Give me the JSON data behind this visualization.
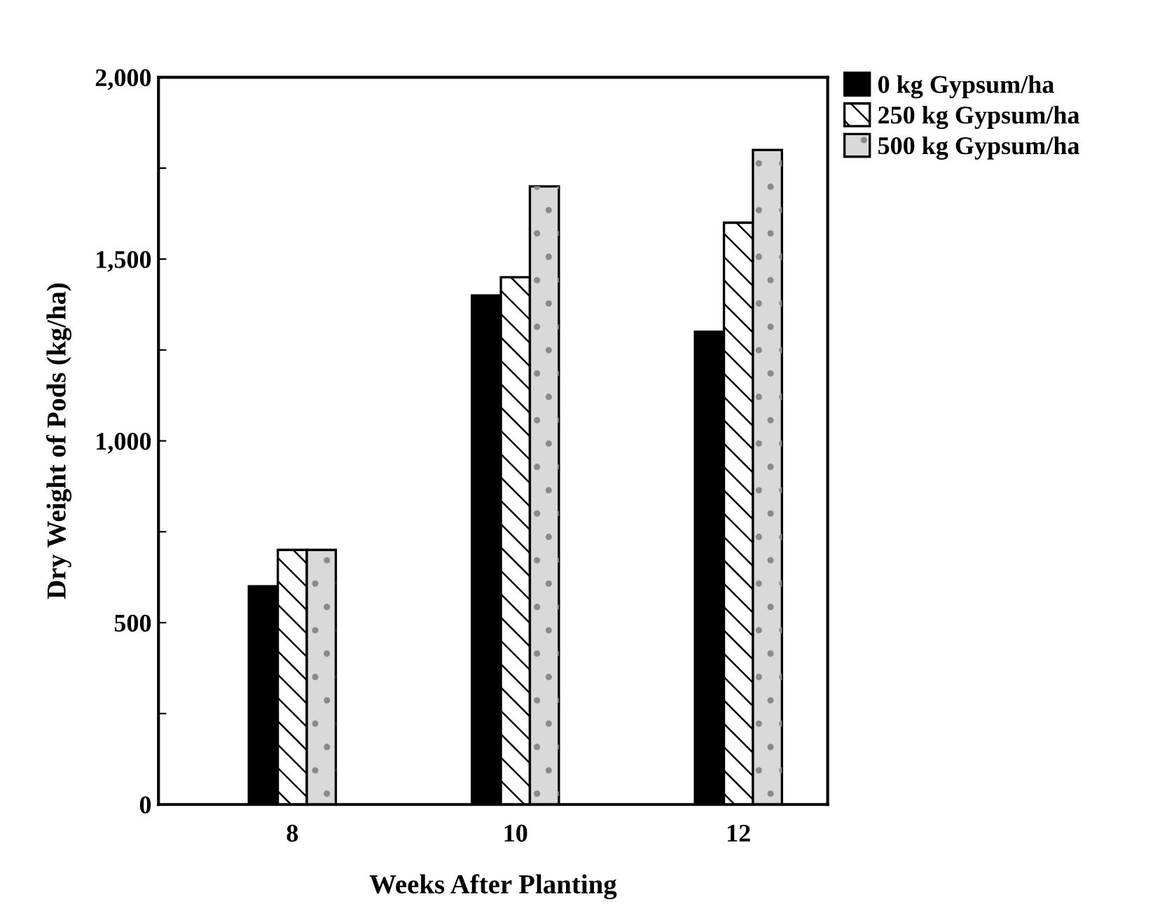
{
  "chart_data": {
    "type": "bar",
    "xlabel": "Weeks After Planting",
    "ylabel": "Dry Weight of Pods (kg/ha)",
    "categories": [
      "8",
      "10",
      "12"
    ],
    "series": [
      {
        "name": "0 kg Gypsum/ha",
        "color": "#000000",
        "values": [
          600,
          1400,
          1300
        ]
      },
      {
        "name": "250 kg Gypsum/ha",
        "color": "#ffffff",
        "values": [
          700,
          1450,
          1600
        ]
      },
      {
        "name": "500 kg Gypsum/ha",
        "color": "#d9d9d9",
        "values": [
          700,
          1700,
          1800
        ]
      }
    ],
    "ylim": [
      0,
      2000
    ],
    "yticks": [
      {
        "value": 0,
        "label": "0"
      },
      {
        "value": 250,
        "label": null
      },
      {
        "value": 500,
        "label": "500"
      },
      {
        "value": 750,
        "label": null
      },
      {
        "value": 1000,
        "label": "1,000"
      },
      {
        "value": 1250,
        "label": null
      },
      {
        "value": 1500,
        "label": "1,500"
      },
      {
        "value": 1750,
        "label": null
      },
      {
        "value": 2000,
        "label": "2,000"
      }
    ],
    "grid": false,
    "legend": "top right"
  }
}
